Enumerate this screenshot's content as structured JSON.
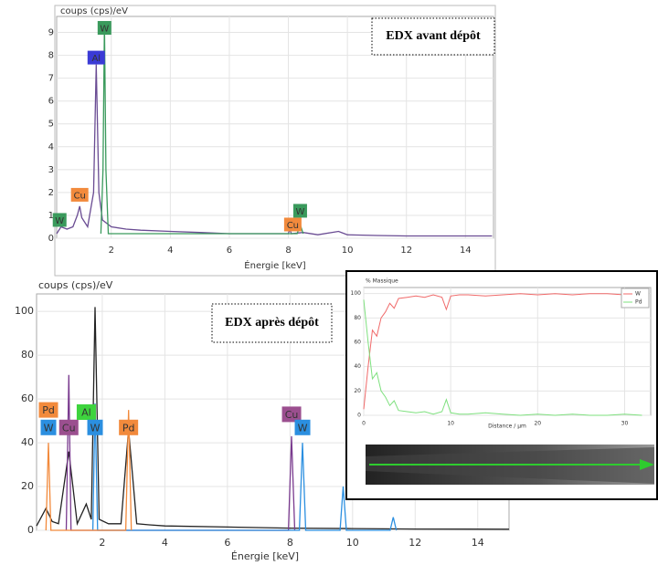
{
  "chart_data": [
    {
      "type": "line",
      "y_label": "coups (cps)/eV",
      "x_label": "Énergie [keV]",
      "annotation": "EDX avant dépôt",
      "xlim": [
        0.15,
        14.95
      ],
      "ylim": [
        0,
        9.7
      ],
      "xticks": [
        2,
        4,
        6,
        8,
        10,
        12,
        14
      ],
      "yticks": [
        0,
        1,
        2,
        3,
        4,
        5,
        6,
        7,
        8,
        9
      ],
      "grid": true,
      "series": [
        {
          "color": "#6a4c93",
          "x": [
            0.15,
            0.3,
            0.5,
            0.7,
            0.85,
            0.93,
            1.0,
            1.2,
            1.4,
            1.49,
            1.58,
            1.7,
            2.0,
            2.5,
            3,
            4,
            5,
            6,
            7,
            8,
            8.05,
            8.1,
            8.5,
            9,
            9.7,
            10,
            11,
            12,
            13,
            14,
            14.9
          ],
          "values": [
            0.2,
            0.5,
            0.4,
            0.5,
            1.0,
            1.4,
            0.9,
            0.5,
            2,
            7.6,
            2,
            0.8,
            0.5,
            0.4,
            0.35,
            0.3,
            0.25,
            0.2,
            0.2,
            0.2,
            0.4,
            0.2,
            0.25,
            0.15,
            0.3,
            0.15,
            0.12,
            0.1,
            0.1,
            0.1,
            0.1
          ]
        },
        {
          "color": "#3a9a5c",
          "x": [
            1.65,
            1.72,
            1.77,
            1.82,
            1.9,
            8.3,
            8.4,
            8.5
          ],
          "values": [
            0.2,
            3,
            9.4,
            3,
            0.2,
            0.2,
            0.6,
            0.2
          ]
        }
      ],
      "peak_labels": [
        {
          "label": "W",
          "x": 0.25,
          "y": 0.8,
          "color": "#3a9a5c"
        },
        {
          "label": "Cu",
          "x": 0.93,
          "y": 1.9,
          "color": "#f28a3c"
        },
        {
          "label": "Al",
          "x": 1.49,
          "y": 7.9,
          "color": "#3b3bd6"
        },
        {
          "label": "W",
          "x": 1.77,
          "y": 9.2,
          "color": "#3a9a5c"
        },
        {
          "label": "Cu",
          "x": 8.15,
          "y": 0.6,
          "color": "#f28a3c"
        },
        {
          "label": "W",
          "x": 8.4,
          "y": 1.2,
          "color": "#3a9a5c"
        }
      ]
    },
    {
      "type": "line",
      "y_label": "coups (cps)/eV",
      "x_label": "Énergie [keV]",
      "annotation": "EDX après dépôt",
      "xlim": [
        -0.1,
        15
      ],
      "ylim": [
        0,
        108
      ],
      "xticks": [
        2,
        4,
        6,
        8,
        10,
        12,
        14
      ],
      "yticks": [
        0,
        20,
        40,
        60,
        80,
        100
      ],
      "grid": true,
      "series": [
        {
          "color": "#222222",
          "x": [
            -0.1,
            0.2,
            0.4,
            0.6,
            0.93,
            1.2,
            1.49,
            1.65,
            1.77,
            1.9,
            2.2,
            2.6,
            2.84,
            3.1,
            3.5,
            4,
            6,
            8,
            10,
            12,
            15
          ],
          "values": [
            2,
            10,
            4,
            3,
            36,
            3,
            12,
            5,
            102,
            5,
            3,
            3,
            46,
            3,
            2.5,
            2,
            1.5,
            1,
            0.8,
            0.6,
            0.5
          ]
        },
        {
          "color": "#7a3b8f",
          "x": [
            0.85,
            0.93,
            1.0,
            7.95,
            8.05,
            8.15
          ],
          "values": [
            0,
            71,
            0,
            0,
            43,
            0
          ]
        },
        {
          "color": "#2b8fe0",
          "x": [
            1.7,
            1.77,
            1.85,
            8.3,
            8.4,
            8.5,
            9.6,
            9.7,
            9.8,
            11.2,
            11.3,
            11.4
          ],
          "values": [
            0,
            58,
            0,
            0,
            40,
            0,
            0,
            20,
            0,
            0,
            6,
            0
          ]
        },
        {
          "color": "#f28a3c",
          "x": [
            0.2,
            0.28,
            0.36,
            2.75,
            2.84,
            2.93
          ],
          "values": [
            0,
            40,
            0,
            0,
            55,
            0
          ]
        }
      ],
      "peak_labels": [
        {
          "label": "Pd",
          "x": 0.28,
          "y": 55,
          "color": "#f28a3c"
        },
        {
          "label": "W",
          "x": 0.28,
          "y": 47,
          "color": "#2b8fe0"
        },
        {
          "label": "Cu",
          "x": 0.93,
          "y": 47,
          "color": "#9b4f8f"
        },
        {
          "label": "Al",
          "x": 1.49,
          "y": 54,
          "color": "#3ed43e"
        },
        {
          "label": "W",
          "x": 1.77,
          "y": 47,
          "color": "#2b8fe0"
        },
        {
          "label": "Pd",
          "x": 2.84,
          "y": 47,
          "color": "#f28a3c"
        },
        {
          "label": "Cu",
          "x": 8.05,
          "y": 53,
          "color": "#9b4f8f"
        },
        {
          "label": "W",
          "x": 8.4,
          "y": 47,
          "color": "#2b8fe0"
        }
      ]
    },
    {
      "type": "line",
      "y_label": "% Massique",
      "x_label": "Distance / µm",
      "legend": "top-right",
      "xlim": [
        0,
        33
      ],
      "ylim": [
        0,
        105
      ],
      "xticks": [
        0,
        10,
        20,
        30
      ],
      "yticks": [
        0,
        20,
        40,
        60,
        80,
        100
      ],
      "grid": true,
      "series": [
        {
          "name": "W",
          "color": "#f06a6a",
          "x": [
            0,
            0.5,
            1,
            1.5,
            2,
            2.5,
            3,
            3.5,
            4,
            5,
            6,
            7,
            8,
            9,
            9.5,
            10,
            11,
            12,
            14,
            16,
            18,
            20,
            22,
            24,
            26,
            28,
            30,
            32
          ],
          "values": [
            5,
            40,
            70,
            65,
            80,
            85,
            92,
            88,
            96,
            97,
            98,
            97,
            99,
            97,
            87,
            98,
            99,
            99,
            98,
            99,
            100,
            99,
            100,
            99,
            100,
            100,
            99,
            100
          ]
        },
        {
          "name": "Pd",
          "color": "#7ee07e",
          "x": [
            0,
            0.5,
            1,
            1.5,
            2,
            2.5,
            3,
            3.5,
            4,
            5,
            6,
            7,
            8,
            9,
            9.5,
            10,
            11,
            12,
            14,
            16,
            18,
            20,
            22,
            24,
            26,
            28,
            30,
            32
          ],
          "values": [
            95,
            60,
            30,
            35,
            20,
            15,
            8,
            12,
            4,
            3,
            2,
            3,
            1,
            3,
            13,
            2,
            1,
            1,
            2,
            1,
            0,
            1,
            0,
            1,
            0,
            0,
            1,
            0
          ]
        }
      ]
    }
  ]
}
